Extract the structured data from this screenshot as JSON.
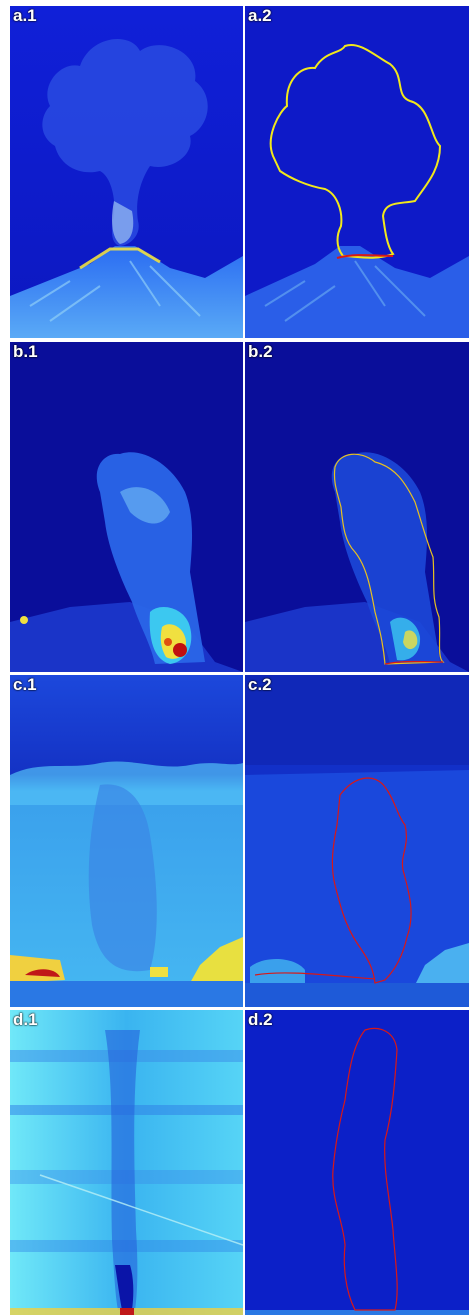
{
  "panels": [
    {
      "id": "a1",
      "label": "a.1"
    },
    {
      "id": "a2",
      "label": "a.2"
    },
    {
      "id": "b1",
      "label": "b.1"
    },
    {
      "id": "b2",
      "label": "b.2"
    },
    {
      "id": "c1",
      "label": "c.1"
    },
    {
      "id": "c2",
      "label": "c.2"
    },
    {
      "id": "d1",
      "label": "d.1"
    },
    {
      "id": "d2",
      "label": "d.2"
    }
  ],
  "colors": {
    "deep_blue": "#0a10c8",
    "mid_blue": "#1e46e6",
    "cyan": "#3cc8f0",
    "yellow": "#f0e040",
    "red": "#e01010",
    "outline_yellow": "#f2e81a",
    "outline_red": "#d81818"
  }
}
